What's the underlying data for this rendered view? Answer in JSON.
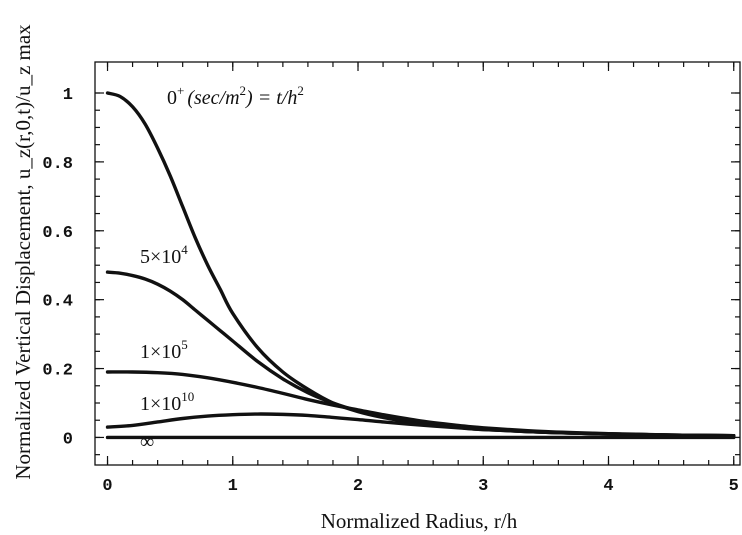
{
  "chart_data": {
    "type": "line",
    "xlabel": "Normalized Radius, r/h",
    "ylabel": "Normalized Vertical Displacement, u_z(r,0,t)/u_z max",
    "xlim": [
      -0.1,
      5.05
    ],
    "ylim": [
      -0.08,
      1.09
    ],
    "x_ticks": [
      0,
      1,
      2,
      3,
      4,
      5
    ],
    "y_ticks": [
      0,
      0.2,
      0.4,
      0.6,
      0.8,
      1
    ],
    "x_tick_labels": [
      "0",
      "1",
      "2",
      "3",
      "4",
      "5"
    ],
    "y_tick_labels": [
      "0",
      "0.2",
      "0.4",
      "0.6",
      "0.8",
      "1"
    ],
    "grid": false,
    "legend": "none",
    "curve_label_prefix": "(sec/m",
    "curve_label_suffix": ") = t/h",
    "series": [
      {
        "label": "0+",
        "x": [
          0,
          0.1,
          0.2,
          0.3,
          0.4,
          0.5,
          0.6,
          0.7,
          0.8,
          0.9,
          1.0,
          1.2,
          1.4,
          1.6,
          1.8,
          2.0,
          2.2,
          2.5,
          2.8,
          3.0,
          3.5,
          4.0,
          4.5,
          5.0
        ],
        "y": [
          1.0,
          0.99,
          0.96,
          0.91,
          0.84,
          0.76,
          0.67,
          0.58,
          0.5,
          0.43,
          0.36,
          0.26,
          0.19,
          0.14,
          0.1,
          0.075,
          0.058,
          0.04,
          0.029,
          0.023,
          0.015,
          0.01,
          0.007,
          0.005
        ]
      },
      {
        "label": "5×10⁴",
        "x": [
          0,
          0.1,
          0.2,
          0.3,
          0.4,
          0.5,
          0.6,
          0.7,
          0.8,
          0.9,
          1.0,
          1.2,
          1.4,
          1.6,
          1.8,
          2.0,
          2.2,
          2.5,
          2.8,
          3.0,
          3.5,
          4.0,
          4.5,
          5.0
        ],
        "y": [
          0.48,
          0.477,
          0.47,
          0.46,
          0.445,
          0.425,
          0.4,
          0.37,
          0.34,
          0.31,
          0.28,
          0.22,
          0.17,
          0.13,
          0.1,
          0.077,
          0.06,
          0.042,
          0.03,
          0.024,
          0.015,
          0.01,
          0.007,
          0.005
        ]
      },
      {
        "label": "1×10⁵",
        "x": [
          0,
          0.2,
          0.4,
          0.6,
          0.8,
          1.0,
          1.2,
          1.4,
          1.6,
          1.8,
          2.0,
          2.2,
          2.5,
          2.8,
          3.0,
          3.5,
          4.0,
          4.5,
          5.0
        ],
        "y": [
          0.19,
          0.19,
          0.188,
          0.183,
          0.173,
          0.16,
          0.145,
          0.128,
          0.11,
          0.094,
          0.08,
          0.066,
          0.048,
          0.035,
          0.028,
          0.017,
          0.011,
          0.007,
          0.005
        ]
      },
      {
        "label": "1×10¹⁰",
        "x": [
          0,
          0.2,
          0.4,
          0.6,
          0.8,
          1.0,
          1.2,
          1.4,
          1.6,
          1.8,
          2.0,
          2.2,
          2.5,
          2.8,
          3.0,
          3.5,
          4.0,
          4.5,
          5.0
        ],
        "y": [
          0.03,
          0.035,
          0.045,
          0.055,
          0.062,
          0.066,
          0.068,
          0.067,
          0.064,
          0.058,
          0.052,
          0.045,
          0.036,
          0.028,
          0.023,
          0.015,
          0.01,
          0.007,
          0.005
        ]
      },
      {
        "label": "∞",
        "x": [
          0,
          5.0
        ],
        "y": [
          0,
          0
        ]
      }
    ]
  }
}
